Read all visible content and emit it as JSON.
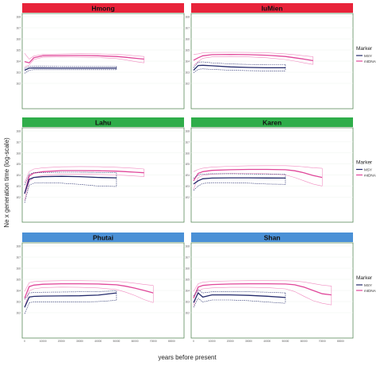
{
  "figure": {
    "ylabel": "Ne x generation time (log-scale)",
    "xlabel": "years before present",
    "legend_title": "Marker",
    "legend_items": [
      "MSY",
      "mtDNA"
    ],
    "y_ticks": [
      "1E8",
      "1E7",
      "1E6",
      "1E5",
      "1E4",
      "1E3",
      "1E2"
    ],
    "x_ticks": [
      "0",
      "10000",
      "20000",
      "30000",
      "40000",
      "50000",
      "60000",
      "70000",
      "80000"
    ]
  },
  "colors": {
    "red_header": "#e8233a",
    "green_header": "#2fad4a",
    "blue_header": "#4a90d6",
    "msy": "#232a6b",
    "mtdna": "#e0479a",
    "mtdna_band": "#f08cc0",
    "panel_border": "#5a8a5a"
  },
  "chart_data": [
    {
      "type": "line",
      "title": "Hmong",
      "header_color": "red",
      "x": [
        0,
        2500,
        5000,
        10000,
        20000,
        30000,
        40000,
        50000,
        55000,
        60000,
        65000
      ],
      "series": [
        {
          "name": "mtDNA",
          "values": [
            9000,
            7000,
            20000,
            30000,
            32000,
            32000,
            30000,
            26000,
            22000,
            18000,
            15000
          ],
          "upper": [
            50000,
            15000,
            28000,
            40000,
            44000,
            46000,
            45000,
            40000,
            36000,
            30000,
            26000
          ],
          "lower": [
            3000,
            4500,
            14000,
            22000,
            24000,
            23000,
            21000,
            17000,
            13000,
            9000,
            7000
          ]
        },
        {
          "name": "MSY",
          "values": [
            1500,
            2300,
            2400,
            2400,
            2300,
            2300,
            2300,
            2300,
            null,
            null,
            null
          ],
          "upper": [
            2200,
            3200,
            3300,
            3300,
            3200,
            3200,
            3200,
            3200,
            null,
            null,
            null
          ],
          "lower": [
            800,
            1500,
            1700,
            1700,
            1700,
            1700,
            1700,
            1700,
            null,
            null,
            null
          ]
        }
      ],
      "ylim": [
        1,
        100000000
      ],
      "yscale": "log",
      "xlim": [
        0,
        85000
      ]
    },
    {
      "type": "line",
      "title": "IuMien",
      "header_color": "red",
      "x": [
        0,
        2500,
        5000,
        10000,
        20000,
        30000,
        40000,
        50000,
        55000,
        60000,
        65000
      ],
      "series": [
        {
          "name": "mtDNA",
          "values": [
            12000,
            20000,
            30000,
            38000,
            40000,
            38000,
            34000,
            26000,
            20000,
            15000,
            11000
          ],
          "upper": [
            40000,
            45000,
            55000,
            60000,
            62000,
            60000,
            55000,
            45000,
            38000,
            30000,
            25000
          ],
          "lower": [
            4000,
            9000,
            18000,
            24000,
            26000,
            24000,
            20000,
            14000,
            10000,
            7000,
            5000
          ]
        },
        {
          "name": "MSY",
          "values": [
            1500,
            4000,
            4200,
            3800,
            3000,
            2700,
            2500,
            2500,
            null,
            null,
            null
          ],
          "upper": [
            2500,
            8000,
            8500,
            7000,
            5500,
            5000,
            4800,
            4800,
            null,
            null,
            null
          ],
          "lower": [
            900,
            1800,
            2000,
            1800,
            1500,
            1400,
            1300,
            1300,
            null,
            null,
            null
          ]
        }
      ],
      "ylim": [
        1,
        100000000
      ],
      "yscale": "log",
      "xlim": [
        0,
        85000
      ]
    },
    {
      "type": "line",
      "title": "Lahu",
      "header_color": "green",
      "x": [
        0,
        2500,
        5000,
        10000,
        20000,
        30000,
        40000,
        50000,
        55000,
        60000,
        65000
      ],
      "series": [
        {
          "name": "mtDNA",
          "values": [
            200,
            8000,
            15000,
            20000,
            25000,
            25000,
            24000,
            22000,
            20000,
            18000,
            16000
          ],
          "upper": [
            2000,
            20000,
            35000,
            45000,
            55000,
            58000,
            56000,
            50000,
            45000,
            40000,
            35000
          ],
          "lower": [
            50,
            2500,
            6000,
            9000,
            12000,
            12000,
            11000,
            10000,
            9000,
            8000,
            7000
          ]
        },
        {
          "name": "MSY",
          "values": [
            200,
            4000,
            6000,
            7000,
            7500,
            7000,
            6000,
            5500,
            null,
            null,
            null
          ],
          "upper": [
            1200,
            12000,
            16000,
            17000,
            18000,
            18000,
            17000,
            16000,
            null,
            null,
            null
          ],
          "lower": [
            30,
            1200,
            1800,
            2000,
            1800,
            1400,
            1000,
            900,
            null,
            null,
            null
          ]
        }
      ],
      "ylim": [
        1,
        100000000
      ],
      "yscale": "log",
      "xlim": [
        0,
        85000
      ]
    },
    {
      "type": "line",
      "title": "Karen",
      "header_color": "green",
      "x": [
        0,
        2500,
        5000,
        10000,
        20000,
        30000,
        40000,
        50000,
        55000,
        60000,
        65000,
        70000
      ],
      "series": [
        {
          "name": "mtDNA",
          "values": [
            3000,
            14000,
            20000,
            26000,
            30000,
            32000,
            32000,
            30000,
            24000,
            16000,
            9000,
            6000
          ],
          "upper": [
            20000,
            32000,
            42000,
            52000,
            62000,
            68000,
            70000,
            70000,
            64000,
            55000,
            45000,
            40000
          ],
          "lower": [
            500,
            6000,
            9000,
            12000,
            14000,
            14000,
            13000,
            10000,
            6000,
            3000,
            1500,
            1000
          ]
        },
        {
          "name": "MSY",
          "values": [
            1500,
            3000,
            4500,
            5200,
            5500,
            5500,
            5300,
            5200,
            null,
            null,
            null,
            null
          ],
          "upper": [
            5000,
            10000,
            12000,
            13000,
            13000,
            12500,
            12000,
            11500,
            null,
            null,
            null,
            null
          ],
          "lower": [
            400,
            1000,
            1700,
            2000,
            2000,
            1800,
            1500,
            1400,
            null,
            null,
            null,
            null
          ]
        }
      ],
      "ylim": [
        1,
        100000000
      ],
      "yscale": "log",
      "xlim": [
        0,
        85000
      ]
    },
    {
      "type": "line",
      "title": "Phutai",
      "header_color": "blue",
      "x": [
        0,
        2500,
        5000,
        10000,
        20000,
        30000,
        40000,
        50000,
        55000,
        60000,
        65000,
        70000
      ],
      "series": [
        {
          "name": "mtDNA",
          "values": [
            2000,
            22000,
            30000,
            36000,
            40000,
            40000,
            38000,
            32000,
            24000,
            16000,
            10000,
            6000
          ],
          "upper": [
            8000,
            50000,
            62000,
            70000,
            75000,
            75000,
            72000,
            65000,
            55000,
            45000,
            35000,
            28000
          ],
          "lower": [
            300,
            9000,
            14000,
            18000,
            20000,
            19000,
            17000,
            12000,
            7000,
            3500,
            1500,
            800
          ]
        },
        {
          "name": "MSY",
          "values": [
            300,
            2500,
            2900,
            3100,
            3200,
            3300,
            3800,
            6000,
            null,
            null,
            null,
            null
          ],
          "upper": [
            1500,
            6000,
            6500,
            7000,
            7200,
            7500,
            8000,
            9000,
            null,
            null,
            null,
            null
          ],
          "lower": [
            80,
            800,
            900,
            900,
            900,
            900,
            1000,
            1300,
            null,
            null,
            null,
            null
          ]
        }
      ],
      "ylim": [
        1,
        100000000
      ],
      "yscale": "log",
      "xlim": [
        0,
        85000
      ]
    },
    {
      "type": "line",
      "title": "Shan",
      "header_color": "blue",
      "x": [
        0,
        2500,
        5000,
        10000,
        20000,
        30000,
        40000,
        50000,
        55000,
        60000,
        65000,
        70000,
        75000
      ],
      "series": [
        {
          "name": "mtDNA",
          "values": [
            2000,
            20000,
            28000,
            34000,
            38000,
            40000,
            40000,
            38000,
            32000,
            20000,
            10000,
            5000,
            4000
          ],
          "upper": [
            8000,
            40000,
            55000,
            65000,
            72000,
            75000,
            75000,
            74000,
            70000,
            58000,
            42000,
            30000,
            25000
          ],
          "lower": [
            400,
            9000,
            14000,
            17000,
            19000,
            19000,
            18000,
            14000,
            8000,
            3000,
            1200,
            700,
            500
          ]
        },
        {
          "name": "MSY",
          "values": [
            800,
            6000,
            2500,
            4000,
            4000,
            3600,
            3000,
            2300,
            null,
            null,
            null,
            null,
            null
          ],
          "upper": [
            3000,
            12000,
            6000,
            7500,
            7800,
            7500,
            7000,
            6000,
            null,
            null,
            null,
            null,
            null
          ],
          "lower": [
            300,
            2000,
            900,
            1400,
            1400,
            1200,
            900,
            700,
            null,
            null,
            null,
            null,
            null
          ]
        }
      ],
      "ylim": [
        1,
        100000000
      ],
      "yscale": "log",
      "xlim": [
        0,
        85000
      ]
    }
  ]
}
